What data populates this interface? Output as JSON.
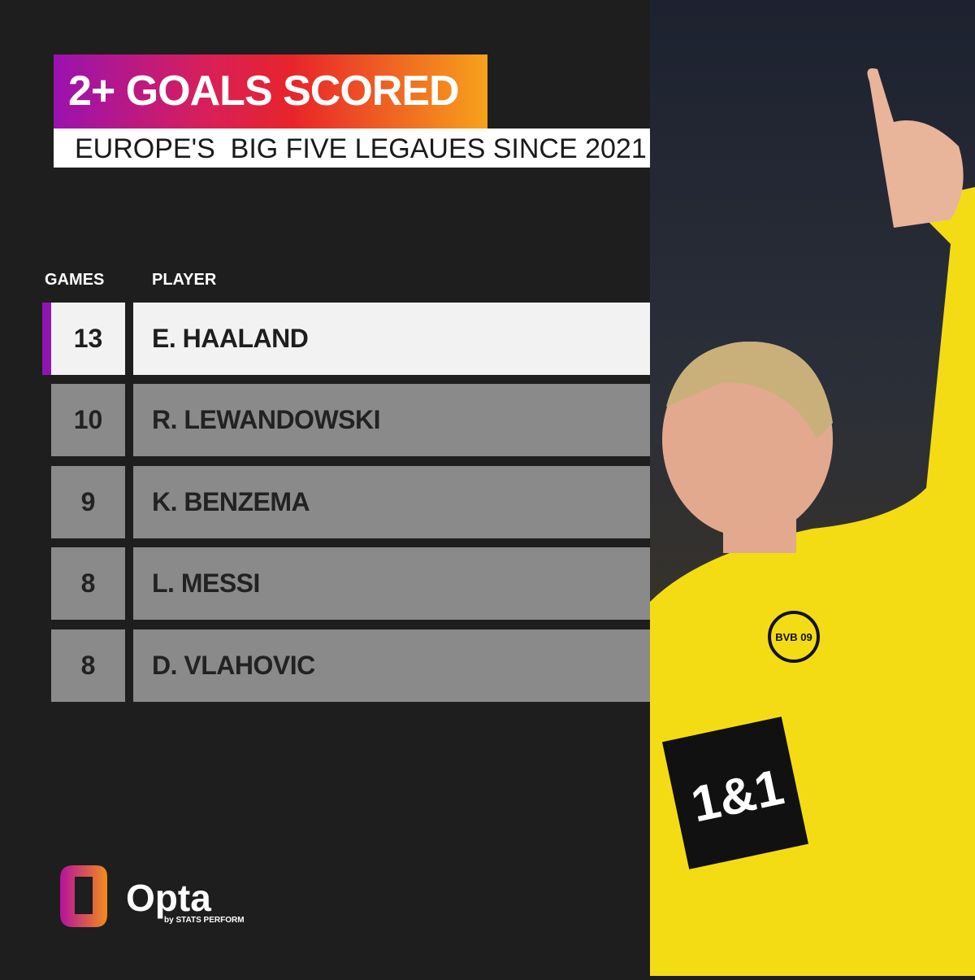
{
  "title": "2+ GOALS SCORED",
  "subtitle": "EUROPE'S  BIG FIVE LEGAUES SINCE 2021",
  "columns": {
    "games": "GAMES",
    "player": "PLAYER"
  },
  "rows": [
    {
      "games": "13",
      "player": "E. HAALAND"
    },
    {
      "games": "10",
      "player": "R. LEWANDOWSKI"
    },
    {
      "games": "9",
      "player": "K. BENZEMA"
    },
    {
      "games": "8",
      "player": "L. MESSI"
    },
    {
      "games": "8",
      "player": "D. VLAHOVIC"
    }
  ],
  "logo": {
    "name": "Opta",
    "tagline": "by STATS PERFORM"
  },
  "photo": {
    "shirt_sponsor": "1&1",
    "badge": "BVB 09"
  },
  "colors": {
    "accent": "#8e16b0",
    "highlight_row": "#f2f2f2",
    "row": "#8a8a8a",
    "kit": "#f5e21a"
  }
}
